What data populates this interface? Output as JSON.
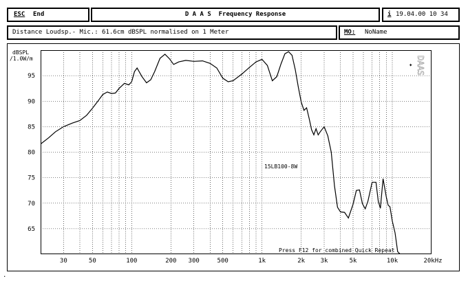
{
  "header": {
    "esc_key": "ESC",
    "esc_label": "End",
    "title": "D A A S  Frequency Response",
    "info_key": "i",
    "datetime": "19.04.00 10 34"
  },
  "subheader": {
    "measurement_info": "Distance Loudsp.- Mic.: 61.6cm dBSPL normalised on 1 Meter",
    "mo_key": "MO:",
    "mo_value": "NoName"
  },
  "plot": {
    "y_unit_line1": "dBSPL",
    "y_unit_line2": "/1.0W/m",
    "side_logo": "DAAS",
    "curve_label": "15LB100-8W",
    "hint": "Press F12 for combined Quick Repeat",
    "cursor_glyph": "✦"
  },
  "chart_data": {
    "type": "line",
    "x_scale": "log",
    "xlim": [
      20,
      20000
    ],
    "ylim": [
      60,
      100
    ],
    "y_ticks": [
      65,
      70,
      75,
      80,
      85,
      90,
      95
    ],
    "x_tick_labels": [
      {
        "v": 30,
        "label": "30"
      },
      {
        "v": 50,
        "label": "50"
      },
      {
        "v": 100,
        "label": "100"
      },
      {
        "v": 200,
        "label": "200"
      },
      {
        "v": 300,
        "label": "300"
      },
      {
        "v": 500,
        "label": "500"
      },
      {
        "v": 1000,
        "label": "1k"
      },
      {
        "v": 2000,
        "label": "2k"
      },
      {
        "v": 3000,
        "label": "3k"
      },
      {
        "v": 5000,
        "label": "5k"
      },
      {
        "v": 10000,
        "label": "10k"
      },
      {
        "v": 20000,
        "label": "20kHz"
      }
    ],
    "grid": true,
    "series": [
      {
        "name": "15LB100-8W",
        "x": [
          20,
          23,
          26,
          30,
          35,
          40,
          45,
          50,
          55,
          60,
          65,
          70,
          75,
          80,
          88,
          95,
          100,
          105,
          110,
          120,
          130,
          140,
          150,
          165,
          180,
          195,
          210,
          230,
          260,
          300,
          350,
          400,
          450,
          500,
          550,
          600,
          700,
          800,
          900,
          1000,
          1100,
          1200,
          1300,
          1400,
          1500,
          1600,
          1700,
          1800,
          1900,
          2000,
          2100,
          2200,
          2300,
          2400,
          2500,
          2600,
          2700,
          2800,
          3000,
          3200,
          3400,
          3600,
          3800,
          4000,
          4300,
          4600,
          5000,
          5300,
          5600,
          5900,
          6200,
          6500,
          7000,
          7500,
          7800,
          8100,
          8500,
          9000,
          9300,
          9600,
          10000,
          10500,
          11000,
          11500
        ],
        "y": [
          81.6,
          82.8,
          84,
          85,
          85.7,
          86.2,
          87.2,
          88.6,
          90,
          91.3,
          91.8,
          91.5,
          91.6,
          92.5,
          93.5,
          93.2,
          93.8,
          95.8,
          96.5,
          94.8,
          93.6,
          94.2,
          95.8,
          98.4,
          99.2,
          98.3,
          97.2,
          97.7,
          98,
          97.8,
          97.9,
          97.4,
          96.5,
          94.5,
          93.8,
          94,
          95.3,
          96.6,
          97.7,
          98.2,
          97,
          94,
          94.8,
          97.3,
          99.3,
          99.7,
          99,
          96.2,
          92.8,
          89.8,
          88.2,
          88.7,
          86.6,
          84.4,
          83.4,
          84.6,
          83.4,
          84,
          85,
          83.2,
          80,
          73.4,
          69.2,
          68.3,
          68.2,
          67.1,
          69.8,
          72.5,
          72.6,
          69.9,
          68.9,
          70.4,
          74.1,
          74.1,
          70.4,
          69,
          74.8,
          71.2,
          69.6,
          69.3,
          66.5,
          64.2,
          60.5,
          57
        ]
      }
    ]
  }
}
